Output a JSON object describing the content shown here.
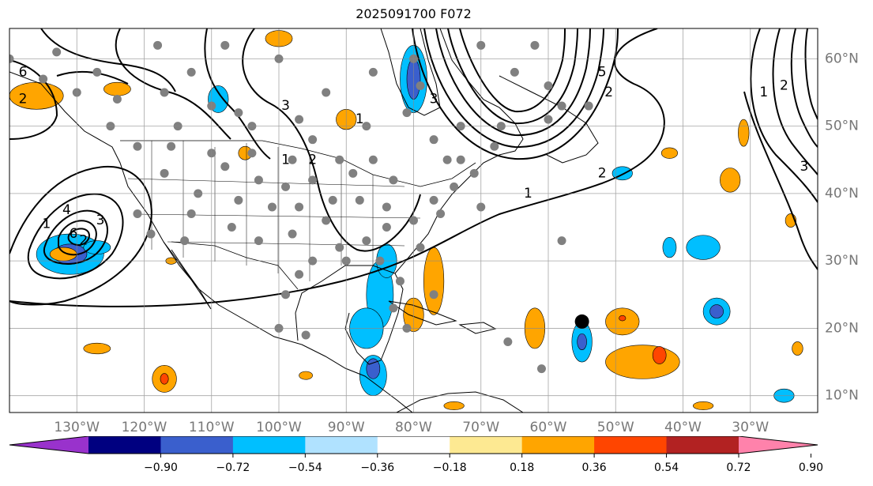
{
  "title": "2025091700 F072",
  "map": {
    "lon_range": [
      -140,
      -20
    ],
    "lat_range": [
      7.5,
      64.5
    ],
    "lon_ticks": [
      {
        "value": -130,
        "label": "130°W"
      },
      {
        "value": -120,
        "label": "120°W"
      },
      {
        "value": -110,
        "label": "110°W"
      },
      {
        "value": -100,
        "label": "100°W"
      },
      {
        "value": -90,
        "label": "90°W"
      },
      {
        "value": -80,
        "label": "80°W"
      },
      {
        "value": -70,
        "label": "70°W"
      },
      {
        "value": -60,
        "label": "60°W"
      },
      {
        "value": -50,
        "label": "50°W"
      },
      {
        "value": -40,
        "label": "40°W"
      },
      {
        "value": -30,
        "label": "30°W"
      }
    ],
    "lat_ticks": [
      {
        "value": 10,
        "label": "10°N"
      },
      {
        "value": 20,
        "label": "20°N"
      },
      {
        "value": 30,
        "label": "30°N"
      },
      {
        "value": 40,
        "label": "40°N"
      },
      {
        "value": 50,
        "label": "50°N"
      },
      {
        "value": 60,
        "label": "60°N"
      }
    ],
    "grid": true,
    "storm_marker": {
      "lon": -55.0,
      "lat": 21.0,
      "color": "#000000"
    },
    "station_color": "#808080",
    "stations": [
      [
        -133,
        61
      ],
      [
        -127,
        58
      ],
      [
        -124,
        54
      ],
      [
        -117,
        55
      ],
      [
        -113,
        58
      ],
      [
        -110,
        53
      ],
      [
        -106,
        52
      ],
      [
        -104,
        50
      ],
      [
        -97,
        51
      ],
      [
        -93,
        55
      ],
      [
        -86,
        58
      ],
      [
        -81,
        52
      ],
      [
        -77,
        48
      ],
      [
        -73,
        45
      ],
      [
        -68,
        47
      ],
      [
        -60,
        51
      ],
      [
        -54,
        53
      ],
      [
        -65,
        58
      ],
      [
        -62,
        62
      ],
      [
        -58,
        53
      ],
      [
        -115,
        50
      ],
      [
        -110,
        46
      ],
      [
        -104,
        46
      ],
      [
        -98,
        45
      ],
      [
        -95,
        42
      ],
      [
        -91,
        45
      ],
      [
        -86,
        45
      ],
      [
        -83,
        42
      ],
      [
        -88,
        39
      ],
      [
        -92,
        39
      ],
      [
        -97,
        38
      ],
      [
        -101,
        38
      ],
      [
        -106,
        39
      ],
      [
        -112,
        40
      ],
      [
        -117,
        43
      ],
      [
        -121,
        37
      ],
      [
        -119,
        34
      ],
      [
        -114,
        33
      ],
      [
        -107,
        35
      ],
      [
        -103,
        33
      ],
      [
        -98,
        34
      ],
      [
        -95,
        30
      ],
      [
        -91,
        32
      ],
      [
        -87,
        33
      ],
      [
        -84,
        35
      ],
      [
        -80,
        36
      ],
      [
        -77,
        39
      ],
      [
        -74,
        41
      ],
      [
        -71,
        43
      ],
      [
        -79,
        32
      ],
      [
        -82,
        27
      ],
      [
        -85,
        30
      ],
      [
        -90,
        30
      ],
      [
        -97,
        28
      ],
      [
        -99,
        25
      ],
      [
        -100,
        20
      ],
      [
        -96,
        19
      ],
      [
        -83,
        23
      ],
      [
        -77,
        25
      ],
      [
        -66,
        18
      ],
      [
        -61,
        14
      ],
      [
        -58,
        33
      ],
      [
        -70,
        38
      ],
      [
        -81,
        20
      ],
      [
        -75,
        45
      ],
      [
        -121,
        47
      ],
      [
        -125,
        50
      ],
      [
        -130,
        55
      ],
      [
        -135,
        57
      ],
      [
        -140,
        60
      ],
      [
        -118,
        62
      ],
      [
        -108,
        62
      ],
      [
        -100,
        60
      ],
      [
        -79,
        56
      ],
      [
        -80,
        60
      ],
      [
        -70,
        62
      ],
      [
        -60,
        56
      ],
      [
        -67,
        50
      ],
      [
        -73,
        50
      ],
      [
        -87,
        50
      ],
      [
        -95,
        48
      ],
      [
        -108,
        44
      ],
      [
        -113,
        37
      ],
      [
        -116,
        47
      ],
      [
        -89,
        43
      ],
      [
        -84,
        38
      ],
      [
        -76,
        37
      ],
      [
        -93,
        36
      ],
      [
        -99,
        41
      ],
      [
        -103,
        42
      ]
    ],
    "contours": {
      "color": "#000000",
      "labels": [
        {
          "text": "1",
          "lon": -134.5,
          "lat": 35.5
        },
        {
          "text": "4",
          "lon": -131.5,
          "lat": 37.5
        },
        {
          "text": "2",
          "lon": -129,
          "lat": 33
        },
        {
          "text": "3",
          "lon": -126.5,
          "lat": 36
        },
        {
          "text": "6",
          "lon": -130.5,
          "lat": 34
        },
        {
          "text": "1",
          "lon": -63,
          "lat": 40
        },
        {
          "text": "2",
          "lon": -52,
          "lat": 43
        },
        {
          "text": "5",
          "lon": -52,
          "lat": 58
        },
        {
          "text": "2",
          "lon": -51,
          "lat": 55
        },
        {
          "text": "3",
          "lon": -99,
          "lat": 53
        },
        {
          "text": "2",
          "lon": -95,
          "lat": 45
        },
        {
          "text": "3",
          "lon": -77,
          "lat": 54
        },
        {
          "text": "1",
          "lon": -88,
          "lat": 51
        },
        {
          "text": "1",
          "lon": -28,
          "lat": 55
        },
        {
          "text": "3",
          "lon": -22,
          "lat": 44
        },
        {
          "text": "2",
          "lon": -25,
          "lat": 56
        },
        {
          "text": "1",
          "lon": -99,
          "lat": 45
        },
        {
          "text": "2",
          "lon": -138,
          "lat": 54
        },
        {
          "text": "6",
          "lon": -138,
          "lat": 58
        }
      ]
    },
    "shading_regions": [
      {
        "lon": -131,
        "lat": 31,
        "rx": 5,
        "ry": 3,
        "color": "#00bfff"
      },
      {
        "lon": -131,
        "lat": 31,
        "rx": 2.5,
        "ry": 1.5,
        "color": "#3a5fcd"
      },
      {
        "lon": -127,
        "lat": 32,
        "rx": 2,
        "ry": 1,
        "color": "#00bfff"
      },
      {
        "lon": -80,
        "lat": 57,
        "rx": 2,
        "ry": 5,
        "color": "#00bfff"
      },
      {
        "lon": -80,
        "lat": 57,
        "rx": 1,
        "ry": 3,
        "color": "#3a5fcd"
      },
      {
        "lon": -109,
        "lat": 54,
        "rx": 1.5,
        "ry": 2,
        "color": "#00bfff"
      },
      {
        "lon": -85,
        "lat": 25,
        "rx": 2,
        "ry": 5,
        "color": "#00bfff"
      },
      {
        "lon": -87,
        "lat": 20,
        "rx": 2.5,
        "ry": 3,
        "color": "#00bfff"
      },
      {
        "lon": -84,
        "lat": 30,
        "rx": 1.5,
        "ry": 2.5,
        "color": "#00bfff"
      },
      {
        "lon": -86,
        "lat": 13,
        "rx": 2,
        "ry": 3,
        "color": "#00bfff"
      },
      {
        "lon": -86,
        "lat": 14,
        "rx": 1,
        "ry": 1.5,
        "color": "#3a5fcd"
      },
      {
        "lon": -55,
        "lat": 18,
        "rx": 1.5,
        "ry": 3,
        "color": "#00bfff"
      },
      {
        "lon": -55,
        "lat": 18,
        "rx": 0.7,
        "ry": 1.2,
        "color": "#3a5fcd"
      },
      {
        "lon": -35,
        "lat": 22.5,
        "rx": 2,
        "ry": 2,
        "color": "#00bfff"
      },
      {
        "lon": -35,
        "lat": 22.5,
        "rx": 1,
        "ry": 1,
        "color": "#3a5fcd"
      },
      {
        "lon": -37,
        "lat": 32,
        "rx": 2.5,
        "ry": 1.8,
        "color": "#00bfff"
      },
      {
        "lon": -42,
        "lat": 32,
        "rx": 1,
        "ry": 1.5,
        "color": "#00bfff"
      },
      {
        "lon": -49,
        "lat": 43,
        "rx": 1.5,
        "ry": 1,
        "color": "#00bfff"
      },
      {
        "lon": -25,
        "lat": 10,
        "rx": 1.5,
        "ry": 1,
        "color": "#00bfff"
      },
      {
        "lon": -136,
        "lat": 54.5,
        "rx": 4,
        "ry": 2,
        "color": "#ffa500"
      },
      {
        "lon": -124,
        "lat": 55.5,
        "rx": 2,
        "ry": 1,
        "color": "#ffa500"
      },
      {
        "lon": -100,
        "lat": 63,
        "rx": 2,
        "ry": 1.2,
        "color": "#ffa500"
      },
      {
        "lon": -90,
        "lat": 51,
        "rx": 1.5,
        "ry": 1.5,
        "color": "#ffa500"
      },
      {
        "lon": -77,
        "lat": 27,
        "rx": 1.5,
        "ry": 5,
        "color": "#ffa500"
      },
      {
        "lon": -80,
        "lat": 22,
        "rx": 1.5,
        "ry": 2.5,
        "color": "#ffa500"
      },
      {
        "lon": -62,
        "lat": 20,
        "rx": 1.5,
        "ry": 3,
        "color": "#ffa500"
      },
      {
        "lon": -49,
        "lat": 21,
        "rx": 2.5,
        "ry": 2,
        "color": "#ffa500"
      },
      {
        "lon": -49,
        "lat": 21.5,
        "rx": 0.5,
        "ry": 0.4,
        "color": "#ff4500"
      },
      {
        "lon": -46,
        "lat": 15,
        "rx": 5.5,
        "ry": 2.5,
        "color": "#ffa500"
      },
      {
        "lon": -43.5,
        "lat": 16,
        "rx": 1,
        "ry": 1.3,
        "color": "#ff4500"
      },
      {
        "lon": -132,
        "lat": 31,
        "rx": 2,
        "ry": 1,
        "color": "#ffa500"
      },
      {
        "lon": -127,
        "lat": 17,
        "rx": 2,
        "ry": 0.8,
        "color": "#ffa500"
      },
      {
        "lon": -117,
        "lat": 12.5,
        "rx": 1.8,
        "ry": 2,
        "color": "#ffa500"
      },
      {
        "lon": -117,
        "lat": 12.5,
        "rx": 0.6,
        "ry": 0.8,
        "color": "#ff4500"
      },
      {
        "lon": -42,
        "lat": 46,
        "rx": 1.2,
        "ry": 0.8,
        "color": "#ffa500"
      },
      {
        "lon": -33,
        "lat": 42,
        "rx": 1.5,
        "ry": 1.8,
        "color": "#ffa500"
      },
      {
        "lon": -31,
        "lat": 49,
        "rx": 0.8,
        "ry": 2,
        "color": "#ffa500"
      },
      {
        "lon": -24,
        "lat": 36,
        "rx": 0.8,
        "ry": 1,
        "color": "#ffa500"
      },
      {
        "lon": -105,
        "lat": 46,
        "rx": 1,
        "ry": 1,
        "color": "#ffa500"
      },
      {
        "lon": -23,
        "lat": 17,
        "rx": 0.8,
        "ry": 1,
        "color": "#ffa500"
      },
      {
        "lon": -96,
        "lat": 13,
        "rx": 1,
        "ry": 0.6,
        "color": "#ffa500"
      },
      {
        "lon": -116,
        "lat": 30,
        "rx": 0.8,
        "ry": 0.5,
        "color": "#ffa500"
      },
      {
        "lon": -74,
        "lat": 8.5,
        "rx": 1.5,
        "ry": 0.6,
        "color": "#ffa500"
      },
      {
        "lon": -37,
        "lat": 8.5,
        "rx": 1.5,
        "ry": 0.6,
        "color": "#ffa500"
      }
    ]
  },
  "colorbar": {
    "bins": [
      {
        "color": "#9932cc"
      },
      {
        "color": "#000080"
      },
      {
        "color": "#3a5fcd"
      },
      {
        "color": "#00bfff"
      },
      {
        "color": "#b0e2ff"
      },
      {
        "color": "#ffffff"
      },
      {
        "color": "#fde992"
      },
      {
        "color": "#ffa500"
      },
      {
        "color": "#ff4500"
      },
      {
        "color": "#b22222"
      },
      {
        "color": "#ff82ab"
      }
    ],
    "tick_labels": [
      "−0.90",
      "−0.72",
      "−0.54",
      "−0.36",
      "−0.18",
      "0.18",
      "0.36",
      "0.54",
      "0.72",
      "0.90"
    ]
  }
}
